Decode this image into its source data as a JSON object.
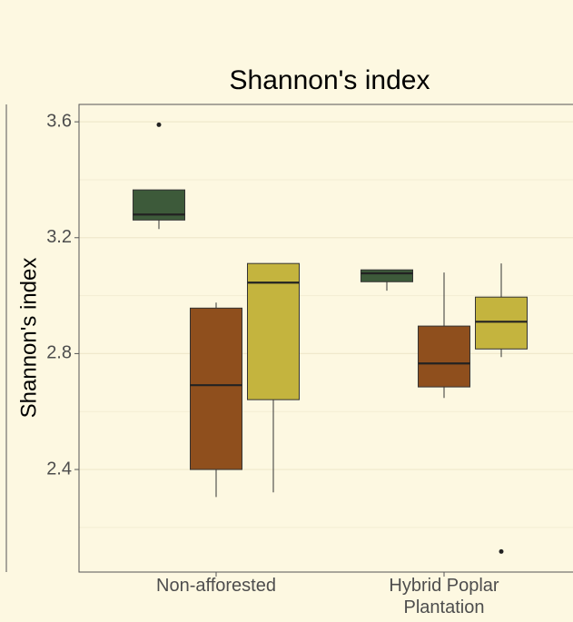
{
  "chart_data": {
    "type": "box",
    "title": "Shannon's index",
    "y_label": "Shannon's index",
    "categories": [
      "Non-afforested",
      "Hybrid Poplar Plantation"
    ],
    "ylim": [
      2.046,
      3.66
    ],
    "yticks": [
      {
        "value": 2.4,
        "label": "2.4"
      },
      2.8,
      3.2,
      3.6
    ],
    "minor_yticks": [
      2.2,
      2.6,
      3.0,
      3.4
    ],
    "grid": true,
    "series": [
      {
        "color": "#3d5a3a",
        "values": [
          {
            "min": 3.23,
            "q1": 3.261,
            "median": 3.28,
            "q3": 3.365,
            "max": 3.365,
            "outliers": [
              3.59
            ]
          },
          {
            "min": 3.017,
            "q1": 3.048,
            "median": 3.077,
            "q3": 3.089,
            "max": 3.089,
            "outliers": []
          }
        ]
      },
      {
        "color": "#8f4f1d",
        "values": [
          {
            "min": 2.305,
            "q1": 2.4,
            "median": 2.691,
            "q3": 2.957,
            "max": 2.976,
            "outliers": []
          },
          {
            "min": 2.647,
            "q1": 2.685,
            "median": 2.766,
            "q3": 2.895,
            "max": 3.08,
            "outliers": []
          }
        ]
      },
      {
        "color": "#c4b43e",
        "values": [
          {
            "min": 2.321,
            "q1": 2.641,
            "median": 3.045,
            "q3": 3.111,
            "max": 3.111,
            "outliers": []
          },
          {
            "min": 2.788,
            "q1": 2.816,
            "median": 2.91,
            "q3": 2.995,
            "max": 3.111,
            "outliers": [
              2.117
            ]
          }
        ]
      }
    ]
  }
}
